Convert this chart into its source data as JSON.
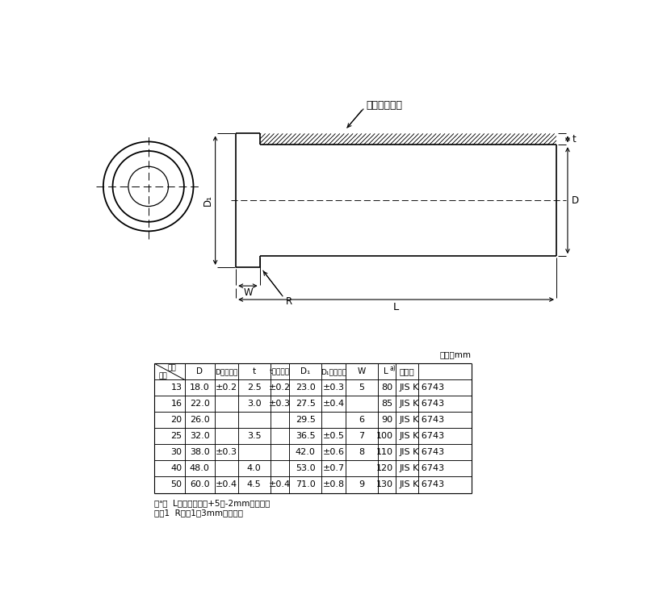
{
  "bg_color": "#ffffff",
  "table_unit": "単位：mm",
  "rows": [
    [
      "13",
      "18.0",
      "±0.2",
      "2.5",
      "±0.2",
      "23.0",
      "±0.3",
      "5",
      "80",
      "JIS K 6743"
    ],
    [
      "16",
      "22.0",
      "",
      "3.0",
      "±0.3",
      "27.5",
      "±0.4",
      "",
      "85",
      "JIS K 6743"
    ],
    [
      "20",
      "26.0",
      "",
      "",
      "",
      "29.5",
      "",
      "6",
      "90",
      "JIS K 6743"
    ],
    [
      "25",
      "32.0",
      "",
      "3.5",
      "",
      "36.5",
      "±0.5",
      "7",
      "100",
      "JIS K 6743"
    ],
    [
      "30",
      "38.0",
      "±0.3",
      "",
      "",
      "42.0",
      "±0.6",
      "8",
      "110",
      "JIS K 6743"
    ],
    [
      "40",
      "48.0",
      "",
      "4.0",
      "",
      "53.0",
      "±0.7",
      "",
      "120",
      "JIS K 6743"
    ],
    [
      "50",
      "60.0",
      "±0.4",
      "4.5",
      "±0.4",
      "71.0",
      "±0.8",
      "9",
      "130",
      "JIS K 6743"
    ]
  ],
  "note1": "注ᵃ）  Lの許容差は、+5／-2mmとする。",
  "note2": "注記1  Rは、1～3mmとする。",
  "gasket_label": "ガスケット渝",
  "header_col0_top": "記号",
  "header_col0_bot": "呆径",
  "header_D": "D",
  "header_Dtol": "Dの許容差",
  "header_t": "t",
  "header_ttol": "tの許容差",
  "header_D1": "D₁",
  "header_D1tol": "D₁の許容差",
  "header_W": "W",
  "header_L": "L",
  "header_spec": "規　格",
  "dim_D1": "D₁",
  "dim_D": "D",
  "dim_t": "t",
  "dim_W": "W",
  "dim_R": "R",
  "dim_L": "L",
  "callout_yobikei": "呆径"
}
